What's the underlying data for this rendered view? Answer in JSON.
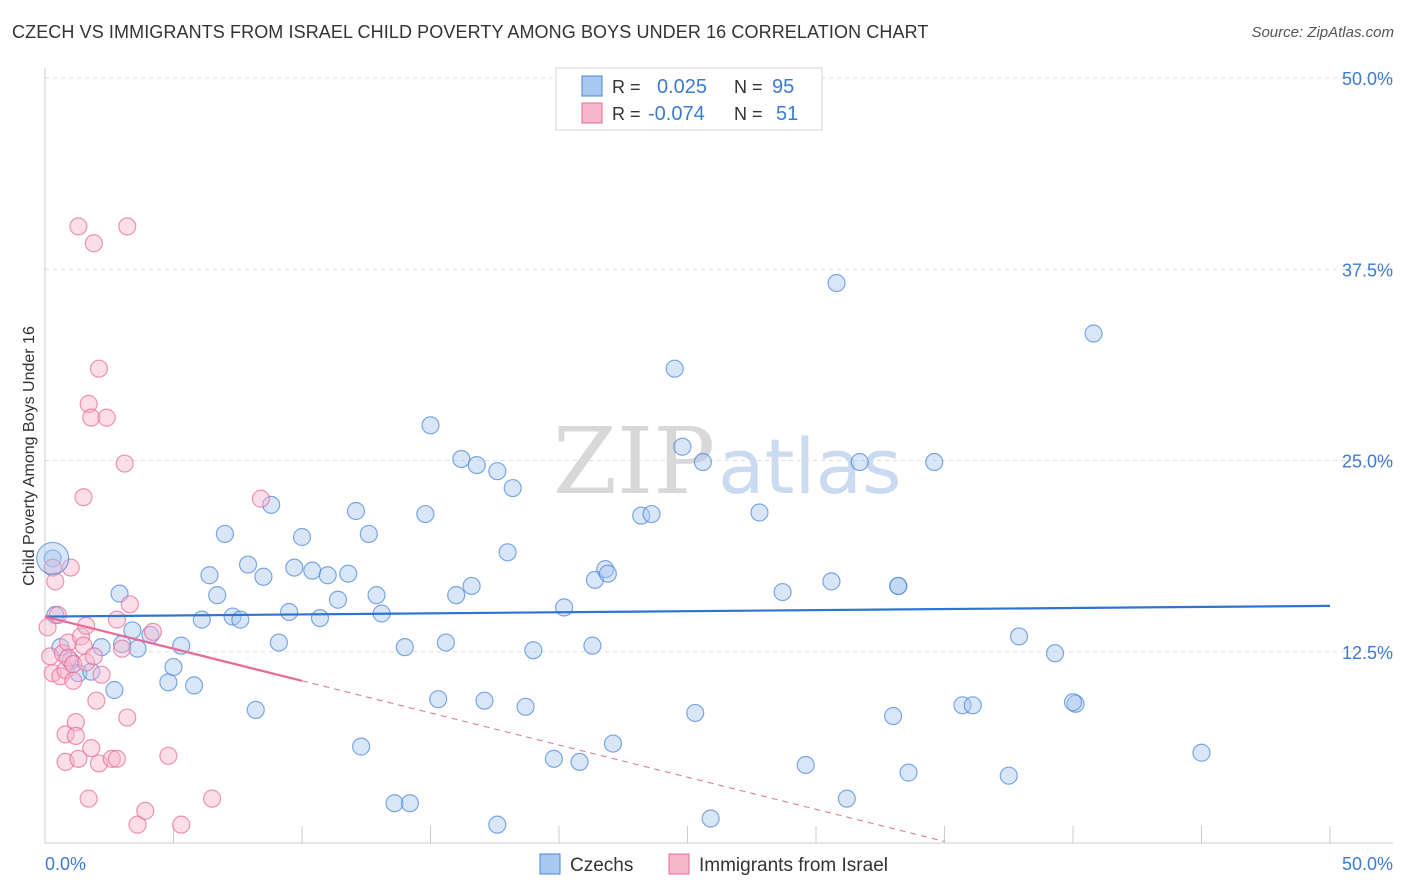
{
  "title": "CZECH VS IMMIGRANTS FROM ISRAEL CHILD POVERTY AMONG BOYS UNDER 16 CORRELATION CHART",
  "source": "Source: ZipAtlas.com",
  "watermark": {
    "zip": "ZIP",
    "atlas": "atlas"
  },
  "legend": {
    "rows": [
      {
        "r_label": "R =",
        "r_value": "0.025",
        "n_label": "N =",
        "n_value": "95",
        "color": "#a8c8f0"
      },
      {
        "r_label": "R =",
        "r_value": "-0.074",
        "n_label": "N =",
        "n_value": "51",
        "color": "#f6b6cb"
      }
    ]
  },
  "bottom_legend": [
    {
      "label": "Czechs",
      "color": "#a8c8f0"
    },
    {
      "label": "Immigrants from Israel",
      "color": "#f6b6cb"
    }
  ],
  "chart_data": {
    "type": "scatter",
    "title": "CZECH VS IMMIGRANTS FROM ISRAEL CHILD POVERTY AMONG BOYS UNDER 16 CORRELATION CHART",
    "xlabel": "",
    "ylabel": "Child Poverty Among Boys Under 16",
    "xlim": [
      0,
      50
    ],
    "ylim": [
      0,
      50
    ],
    "x_tick_labels": [
      "0.0%",
      "50.0%"
    ],
    "y_tick_labels": [
      "12.5%",
      "25.0%",
      "37.5%",
      "50.0%"
    ],
    "y_ticks": [
      12.5,
      25,
      37.5,
      50
    ],
    "series": [
      {
        "name": "Czechs",
        "color": "#4a86d8",
        "fill": "#a8c8f0",
        "trend": {
          "x": [
            0,
            50
          ],
          "y": [
            14.8,
            15.5
          ]
        },
        "points": [
          [
            0.3,
            18.6
          ],
          [
            0.4,
            14.9
          ],
          [
            0.6,
            12.8
          ],
          [
            1.0,
            11.9
          ],
          [
            1.3,
            11.1
          ],
          [
            1.8,
            11.2
          ],
          [
            2.2,
            12.8
          ],
          [
            2.7,
            10.0
          ],
          [
            3.0,
            13.0
          ],
          [
            2.9,
            16.3
          ],
          [
            3.4,
            13.9
          ],
          [
            3.6,
            12.7
          ],
          [
            4.1,
            13.6
          ],
          [
            4.8,
            10.5
          ],
          [
            5.0,
            11.5
          ],
          [
            5.3,
            12.9
          ],
          [
            5.8,
            10.3
          ],
          [
            6.1,
            14.6
          ],
          [
            6.4,
            17.5
          ],
          [
            6.7,
            16.2
          ],
          [
            7.0,
            20.2
          ],
          [
            7.3,
            14.8
          ],
          [
            7.6,
            14.6
          ],
          [
            7.9,
            18.2
          ],
          [
            8.2,
            8.7
          ],
          [
            8.5,
            17.4
          ],
          [
            8.8,
            22.1
          ],
          [
            9.1,
            13.1
          ],
          [
            9.5,
            15.1
          ],
          [
            9.7,
            18.0
          ],
          [
            10.0,
            20.0
          ],
          [
            10.4,
            17.8
          ],
          [
            10.7,
            14.7
          ],
          [
            11.0,
            17.5
          ],
          [
            11.4,
            15.9
          ],
          [
            11.8,
            17.6
          ],
          [
            12.1,
            21.7
          ],
          [
            12.3,
            6.3
          ],
          [
            12.6,
            20.2
          ],
          [
            12.9,
            16.2
          ],
          [
            13.1,
            15.0
          ],
          [
            13.6,
            2.6
          ],
          [
            14.0,
            12.8
          ],
          [
            14.2,
            2.6
          ],
          [
            14.8,
            21.5
          ],
          [
            15.0,
            27.3
          ],
          [
            15.3,
            9.4
          ],
          [
            15.6,
            13.1
          ],
          [
            16.0,
            16.2
          ],
          [
            16.2,
            25.1
          ],
          [
            16.6,
            16.8
          ],
          [
            16.8,
            24.7
          ],
          [
            17.1,
            9.3
          ],
          [
            17.6,
            1.2
          ],
          [
            17.6,
            24.3
          ],
          [
            18.0,
            19.0
          ],
          [
            18.2,
            23.2
          ],
          [
            18.7,
            8.9
          ],
          [
            19.0,
            12.6
          ],
          [
            19.8,
            5.5
          ],
          [
            20.2,
            15.4
          ],
          [
            20.8,
            5.3
          ],
          [
            21.3,
            12.9
          ],
          [
            21.4,
            17.2
          ],
          [
            21.8,
            17.9
          ],
          [
            21.9,
            17.6
          ],
          [
            22.1,
            6.5
          ],
          [
            23.2,
            21.4
          ],
          [
            23.6,
            21.5
          ],
          [
            24.5,
            31.0
          ],
          [
            24.8,
            25.9
          ],
          [
            25.3,
            8.5
          ],
          [
            25.6,
            24.9
          ],
          [
            25.9,
            1.6
          ],
          [
            27.8,
            21.6
          ],
          [
            28.7,
            16.4
          ],
          [
            29.6,
            5.1
          ],
          [
            30.6,
            17.1
          ],
          [
            30.8,
            36.6
          ],
          [
            31.2,
            2.9
          ],
          [
            31.7,
            24.9
          ],
          [
            33.0,
            8.3
          ],
          [
            33.2,
            16.8
          ],
          [
            33.6,
            4.6
          ],
          [
            34.6,
            24.9
          ],
          [
            35.7,
            9.0
          ],
          [
            36.1,
            9.0
          ],
          [
            37.5,
            4.4
          ],
          [
            37.9,
            13.5
          ],
          [
            39.3,
            12.4
          ],
          [
            40.1,
            9.1
          ],
          [
            40.8,
            33.3
          ],
          [
            45.0,
            5.9
          ],
          [
            33.2,
            16.8
          ],
          [
            40.0,
            9.2
          ]
        ]
      },
      {
        "name": "Immigrants from Israel",
        "color": "#e86a98",
        "fill": "#f6b6cb",
        "trend": {
          "x": [
            0,
            10
          ],
          "y": [
            14.8,
            10.6
          ]
        },
        "trend_dashed": {
          "x": [
            10,
            35
          ],
          "y": [
            10.6,
            0.1
          ]
        },
        "points": [
          [
            0.1,
            14.1
          ],
          [
            0.2,
            12.2
          ],
          [
            0.3,
            11.1
          ],
          [
            0.3,
            18.0
          ],
          [
            0.4,
            17.1
          ],
          [
            0.5,
            14.9
          ],
          [
            0.6,
            10.9
          ],
          [
            0.7,
            12.4
          ],
          [
            0.8,
            11.3
          ],
          [
            0.8,
            7.1
          ],
          [
            0.8,
            5.3
          ],
          [
            0.9,
            13.1
          ],
          [
            0.9,
            12.1
          ],
          [
            1.0,
            18.0
          ],
          [
            1.1,
            11.7
          ],
          [
            1.1,
            10.6
          ],
          [
            1.2,
            7.9
          ],
          [
            1.2,
            7.0
          ],
          [
            1.3,
            5.5
          ],
          [
            1.3,
            40.3
          ],
          [
            1.4,
            13.5
          ],
          [
            1.5,
            12.9
          ],
          [
            1.5,
            22.6
          ],
          [
            1.6,
            14.2
          ],
          [
            1.6,
            11.8
          ],
          [
            1.7,
            28.7
          ],
          [
            1.7,
            2.9
          ],
          [
            1.8,
            27.8
          ],
          [
            1.8,
            6.2
          ],
          [
            1.9,
            39.2
          ],
          [
            1.9,
            12.2
          ],
          [
            2.0,
            9.3
          ],
          [
            2.1,
            31.0
          ],
          [
            2.1,
            5.2
          ],
          [
            2.2,
            11.0
          ],
          [
            2.4,
            27.8
          ],
          [
            2.6,
            5.5
          ],
          [
            2.8,
            14.6
          ],
          [
            3.0,
            12.7
          ],
          [
            3.1,
            24.8
          ],
          [
            3.2,
            40.3
          ],
          [
            3.2,
            8.2
          ],
          [
            3.3,
            15.6
          ],
          [
            3.6,
            1.2
          ],
          [
            3.9,
            2.1
          ],
          [
            4.2,
            13.8
          ],
          [
            4.8,
            5.7
          ],
          [
            5.3,
            1.2
          ],
          [
            6.5,
            2.9
          ],
          [
            8.4,
            22.5
          ],
          [
            2.8,
            5.5
          ]
        ]
      }
    ]
  }
}
